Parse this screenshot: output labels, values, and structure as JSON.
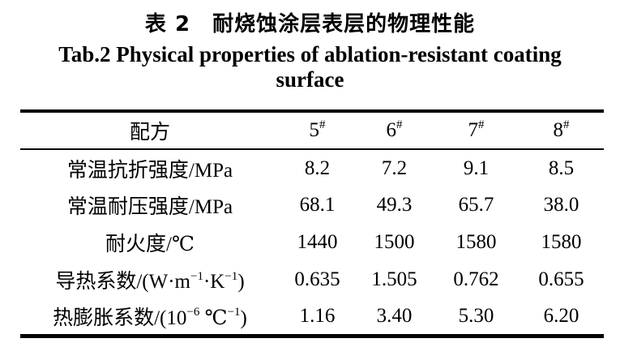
{
  "titles": {
    "chinese": "表 2　耐烧蚀涂层表层的物理性能",
    "english_line1": "Tab.2 Physical properties of ablation-resistant coating",
    "english_line2": "surface"
  },
  "table": {
    "header": {
      "label": "配方",
      "columns": [
        {
          "base": "5",
          "sup": "#"
        },
        {
          "base": "6",
          "sup": "#"
        },
        {
          "base": "7",
          "sup": "#"
        },
        {
          "base": "8",
          "sup": "#"
        }
      ]
    },
    "rows": [
      {
        "label": "常温抗折强度/MPa",
        "values": [
          "8.2",
          "7.2",
          "9.1",
          "8.5"
        ]
      },
      {
        "label": "常温耐压强度/MPa",
        "values": [
          "68.1",
          "49.3",
          "65.7",
          "38.0"
        ]
      },
      {
        "label": "耐火度/℃",
        "values": [
          "1440",
          "1500",
          "1580",
          "1580"
        ]
      },
      {
        "label_parts": [
          {
            "text": "导热系数/(W·m"
          },
          {
            "sup": "−1"
          },
          {
            "text": "·K"
          },
          {
            "sup": "−1"
          },
          {
            "text": ")"
          }
        ],
        "values": [
          "0.635",
          "1.505",
          "0.762",
          "0.655"
        ]
      },
      {
        "label_parts": [
          {
            "text": "热膨胀系数/(10"
          },
          {
            "sup": "−6"
          },
          {
            "text": " ℃"
          },
          {
            "sup": "−1"
          },
          {
            "text": ")"
          }
        ],
        "values": [
          "1.16",
          "3.40",
          "5.30",
          "6.20"
        ]
      }
    ]
  },
  "chart_data": {
    "type": "table",
    "title": "表 2 耐烧蚀涂层表层的物理性能 / Tab.2 Physical properties of ablation-resistant coating surface",
    "columns": [
      "配方",
      "5#",
      "6#",
      "7#",
      "8#"
    ],
    "rows": [
      [
        "常温抗折强度/MPa",
        8.2,
        7.2,
        9.1,
        8.5
      ],
      [
        "常温耐压强度/MPa",
        68.1,
        49.3,
        65.7,
        38.0
      ],
      [
        "耐火度/℃",
        1440,
        1500,
        1580,
        1580
      ],
      [
        "导热系数/(W·m−1·K−1)",
        0.635,
        1.505,
        0.762,
        0.655
      ],
      [
        "热膨胀系数/(10−6 ℃−1)",
        1.16,
        3.4,
        5.3,
        6.2
      ]
    ]
  }
}
